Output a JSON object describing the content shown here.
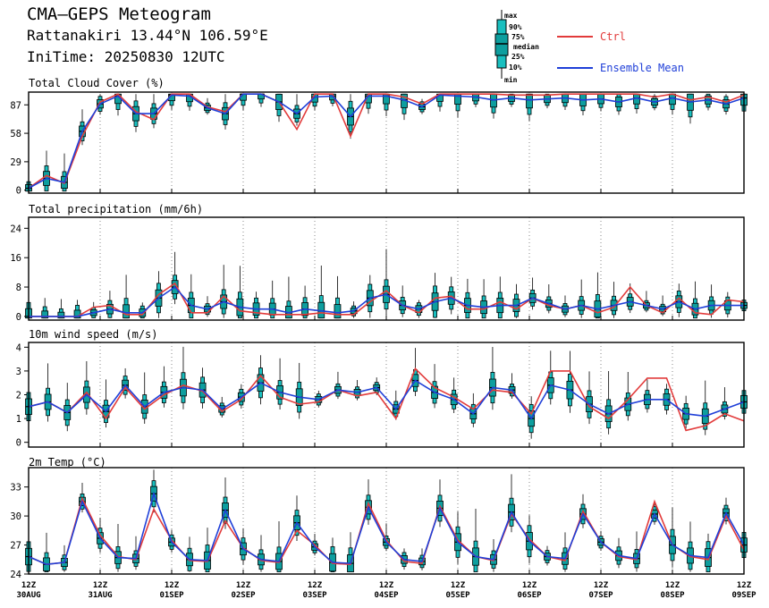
{
  "header": {
    "title": "CMA—GEPS Meteogram",
    "location": "Rattanakiri 13.44°N 106.59°E",
    "initime": "IniTime: 20250830 12UTC"
  },
  "legend": {
    "box_labels": [
      "max",
      "90%",
      "75%",
      "median",
      "25%",
      "10%",
      "min"
    ],
    "ctrl": "Ctrl",
    "mean": "Ensemble Mean"
  },
  "colors": {
    "ctrl": "#e23b3b",
    "mean": "#1f3fd8",
    "box": "#19bfbf",
    "inner": "#0e9e9e"
  },
  "chart_data": {
    "type": "meteogram",
    "x_labels": [
      {
        "hour": "12Z",
        "date": "30AUG"
      },
      {
        "hour": "12Z",
        "date": "31AUG"
      },
      {
        "hour": "12Z",
        "date": "01SEP"
      },
      {
        "hour": "12Z",
        "date": "02SEP"
      },
      {
        "hour": "12Z",
        "date": "03SEP"
      },
      {
        "hour": "12Z",
        "date": "04SEP"
      },
      {
        "hour": "12Z",
        "date": "05SEP"
      },
      {
        "hour": "12Z",
        "date": "06SEP"
      },
      {
        "hour": "12Z",
        "date": "07SEP"
      },
      {
        "hour": "12Z",
        "date": "08SEP"
      },
      {
        "hour": "12Z",
        "date": "09SEP"
      }
    ],
    "interval_hours": 6,
    "panels": [
      {
        "title": "Total Cloud Cover (%)",
        "yticks": [
          "0",
          "29",
          "58",
          "87"
        ],
        "ylim": [
          -3,
          100
        ],
        "ctrl": [
          2,
          15,
          7,
          55,
          90,
          98,
          80,
          72,
          98,
          98,
          85,
          80,
          98,
          98,
          90,
          62,
          98,
          98,
          55,
          98,
          98,
          95,
          88,
          98,
          98,
          98,
          98,
          97,
          97,
          97,
          98,
          98,
          98,
          98,
          98,
          95,
          98,
          92,
          95,
          90,
          97
        ],
        "mean": [
          2,
          12,
          8,
          60,
          88,
          96,
          78,
          78,
          97,
          96,
          84,
          78,
          98,
          98,
          90,
          78,
          95,
          96,
          75,
          96,
          96,
          92,
          85,
          97,
          96,
          95,
          92,
          94,
          92,
          93,
          94,
          92,
          93,
          90,
          94,
          90,
          94,
          90,
          92,
          88,
          94
        ]
      },
      {
        "title": "Total precipitation (mm/6h)",
        "yticks": [
          "0",
          "8",
          "16",
          "24"
        ],
        "ylim": [
          -1,
          27
        ],
        "ctrl": [
          0,
          0,
          0,
          0,
          2.5,
          3,
          0.5,
          0.5,
          6,
          9,
          1,
          1,
          5.5,
          1.5,
          1,
          0.5,
          0.5,
          0.5,
          1,
          0.5,
          0.5,
          4,
          7,
          3,
          1,
          5,
          5.5,
          2,
          2,
          4,
          2,
          5,
          3,
          2,
          3,
          1,
          2.5,
          8,
          3,
          1,
          5,
          1,
          0.5,
          4.5,
          4
        ],
        "mean": [
          0,
          0,
          0,
          0,
          1,
          2,
          1,
          1,
          5,
          8,
          3,
          2,
          4,
          2.5,
          2,
          2,
          1,
          2,
          1.5,
          1,
          1.5,
          5,
          6,
          3,
          2,
          4,
          5,
          3,
          2.5,
          3,
          3,
          5,
          3.5,
          2,
          3,
          2,
          3,
          4,
          3,
          2,
          4,
          2,
          3,
          3,
          3
        ]
      },
      {
        "title": "10m wind speed (m/s)",
        "yticks": [
          "0",
          "1",
          "2",
          "3",
          "4"
        ],
        "ylim": [
          -0.2,
          4.2
        ],
        "ctrl": [
          1.5,
          1.7,
          1.25,
          2.1,
          1.0,
          2.3,
          1.4,
          2.0,
          2.4,
          2.15,
          1.3,
          1.8,
          2.8,
          1.9,
          1.6,
          1.7,
          2.2,
          1.95,
          2.1,
          1.0,
          3.1,
          2.3,
          1.9,
          1.4,
          2.2,
          2.1,
          1.2,
          3.0,
          3.0,
          1.5,
          1.0,
          1.8,
          2.7,
          2.7,
          0.5,
          0.7,
          1.2,
          0.9
        ],
        "mean": [
          1.5,
          1.7,
          1.25,
          2.0,
          1.3,
          2.4,
          1.5,
          2.1,
          2.3,
          2.2,
          1.4,
          1.9,
          2.5,
          2.1,
          1.9,
          1.8,
          2.2,
          2.1,
          2.3,
          1.4,
          2.6,
          2.1,
          1.8,
          1.2,
          2.3,
          2.2,
          1.0,
          2.4,
          2.2,
          1.6,
          1.2,
          1.6,
          1.8,
          1.8,
          1.2,
          1.1,
          1.4,
          1.7
        ]
      },
      {
        "title": "2m Temp (°C)",
        "yticks": [
          "24",
          "27",
          "30",
          "33"
        ],
        "ylim": [
          24,
          35
        ],
        "ctrl": [
          25.8,
          25,
          25.2,
          31.8,
          28,
          25.8,
          25.5,
          30.7,
          27.5,
          25.4,
          25.3,
          29.5,
          26.7,
          25.4,
          25.2,
          28.5,
          27,
          25.1,
          25,
          31.3,
          27.5,
          25.3,
          25.1,
          31,
          27.5,
          25.8,
          25.4,
          30.2,
          27.6,
          25.8,
          25.4,
          30.5,
          27.3,
          25.8,
          25.5,
          31.5,
          27,
          25.8,
          25.5,
          30,
          26.5
        ],
        "mean": [
          25.8,
          25,
          25.2,
          31.5,
          27.7,
          25.7,
          25.6,
          32.3,
          27.3,
          25.5,
          25.4,
          30.6,
          26.6,
          25.5,
          25.3,
          29.3,
          26.8,
          25.2,
          25.1,
          30.9,
          27.3,
          25.5,
          25.3,
          30.8,
          27.3,
          25.8,
          25.5,
          30.4,
          27.4,
          25.8,
          25.6,
          30.2,
          27.3,
          25.9,
          25.6,
          30.2,
          27,
          25.9,
          25.7,
          30.3,
          27
        ]
      }
    ]
  }
}
